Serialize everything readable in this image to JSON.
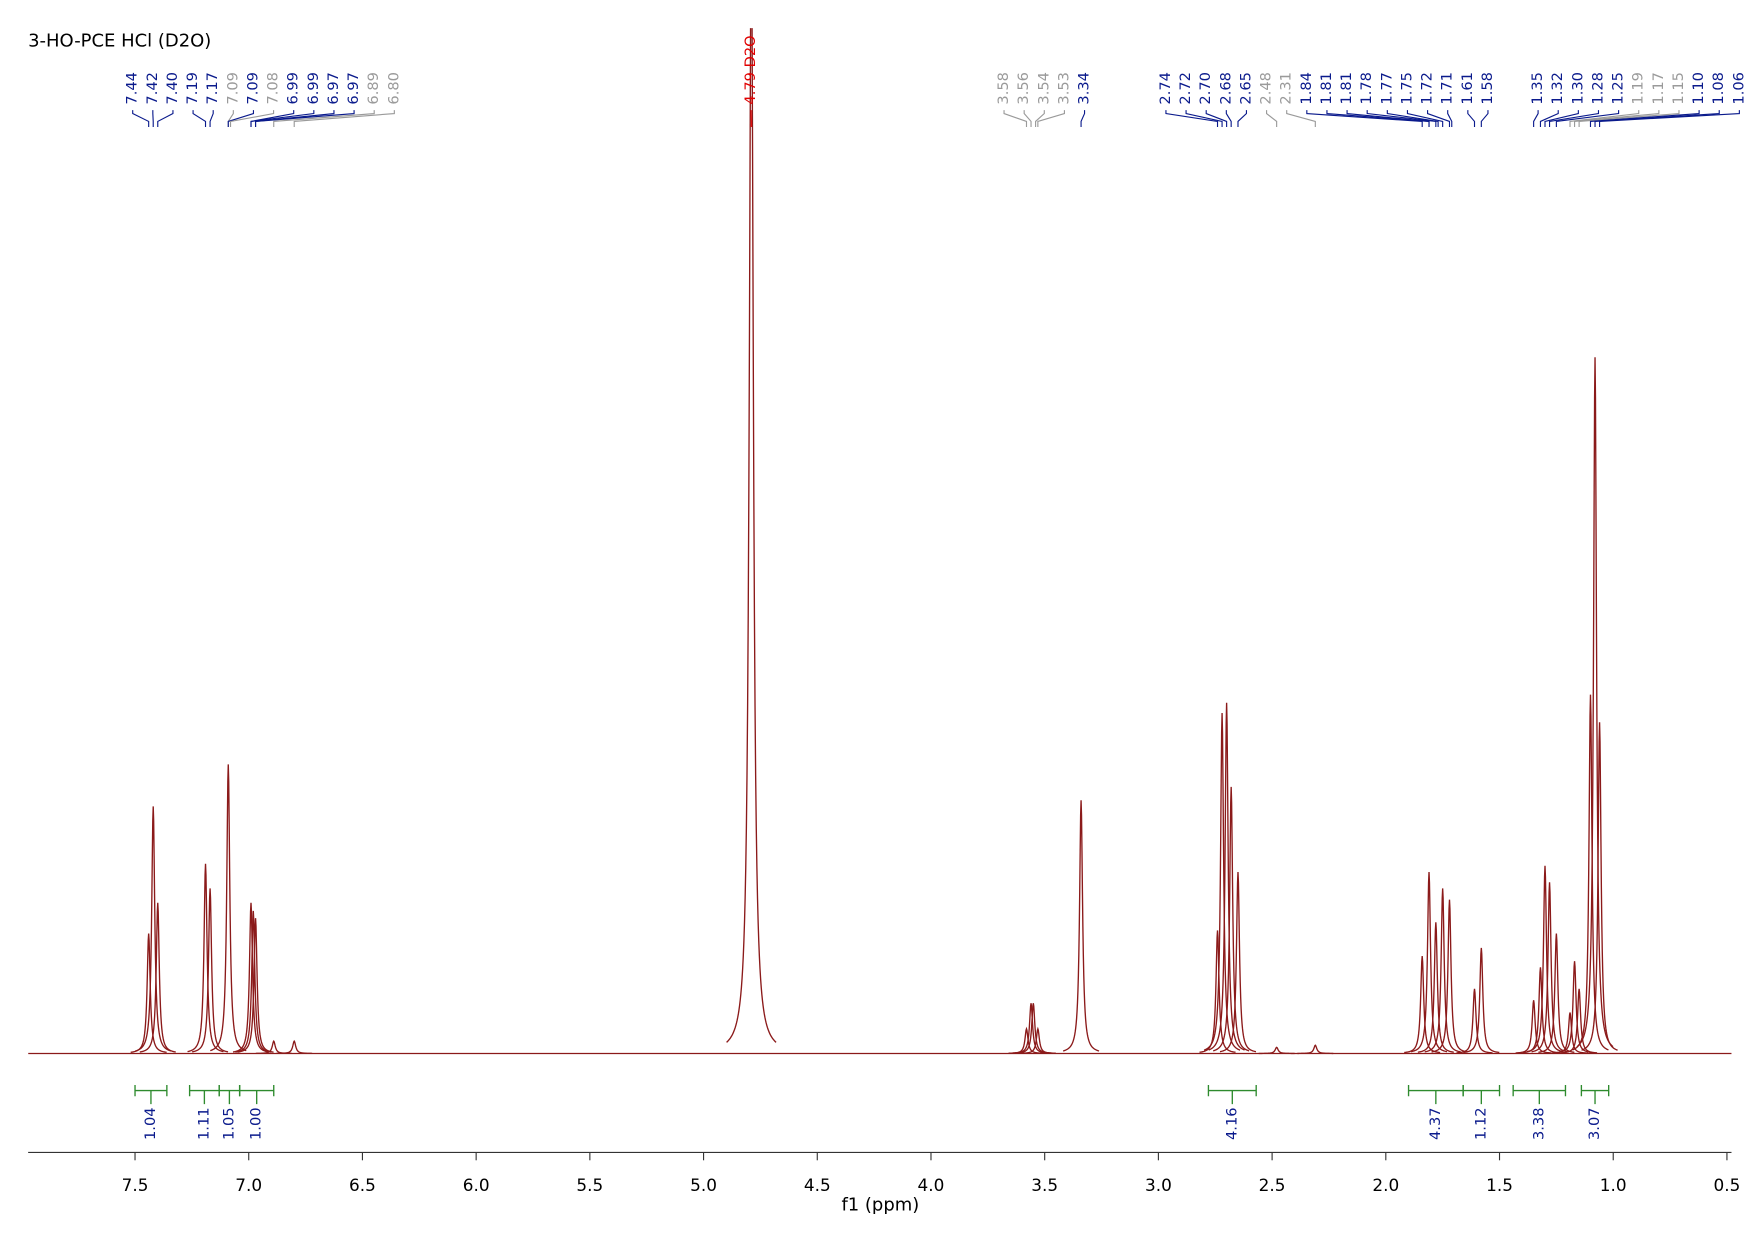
{
  "chart_data": {
    "type": "nmr",
    "title": "3-HO-PCE HCl (D2O)",
    "xlabel": "f1 (ppm)",
    "xlim": [
      7.97,
      0.48
    ],
    "xticks": [
      {
        "value": 7.5,
        "label": "7.5"
      },
      {
        "value": 7,
        "label": "7.0"
      },
      {
        "value": 6.5,
        "label": "6.5"
      },
      {
        "value": 6,
        "label": "6.0"
      },
      {
        "value": 5.5,
        "label": "5.5"
      },
      {
        "value": 5,
        "label": "5.0"
      },
      {
        "value": 4.5,
        "label": "4.5"
      },
      {
        "value": 4,
        "label": "4.0"
      },
      {
        "value": 3.5,
        "label": "3.5"
      },
      {
        "value": 3,
        "label": "3.0"
      },
      {
        "value": 2.5,
        "label": "2.5"
      },
      {
        "value": 2,
        "label": "2.0"
      },
      {
        "value": 1.5,
        "label": "1.5"
      },
      {
        "value": 1,
        "label": "1.0"
      },
      {
        "value": 0.5,
        "label": "0.5"
      }
    ],
    "color": "#8b1a1a",
    "x": [
      7.44,
      7.42,
      7.4,
      7.19,
      7.17,
      7.09,
      6.99,
      6.98,
      6.97,
      6.89,
      6.8,
      4.79,
      3.58,
      3.56,
      3.55,
      3.53,
      3.34,
      2.74,
      2.72,
      2.7,
      2.68,
      2.65,
      2.48,
      2.31,
      1.84,
      1.81,
      1.78,
      1.75,
      1.72,
      1.61,
      1.58,
      1.35,
      1.32,
      1.3,
      1.28,
      1.25,
      1.19,
      1.17,
      1.15,
      1.1,
      1.08,
      1.06
    ],
    "values": [
      11.7,
      24.1,
      14.7,
      18.5,
      16.1,
      28.2,
      14.7,
      13.9,
      13.2,
      1.2,
      1.2,
      110,
      2.4,
      4.9,
      4.9,
      2.4,
      24.7,
      12,
      33.2,
      34.2,
      26,
      17.7,
      0.6,
      0.8,
      9.5,
      17.7,
      12.8,
      16.1,
      15,
      6.3,
      10.3,
      5.2,
      8.4,
      18.3,
      16.7,
      11.7,
      4,
      9,
      6.3,
      35,
      67.9,
      32.3
    ],
    "peak_labels": [
      {
        "labels": [
          "7.44",
          "7.42",
          "7.40",
          "7.19",
          "7.17",
          "7.09",
          "7.09",
          "7.08",
          "6.99",
          "6.99",
          "6.97",
          "6.97",
          "6.89",
          "6.80"
        ],
        "colors": [
          "#0a1a8c",
          "#0a1a8c",
          "#0a1a8c",
          "#0a1a8c",
          "#0a1a8c",
          "#9a9a9a",
          "#0a1a8c",
          "#9a9a9a",
          "#0a1a8c",
          "#0a1a8c",
          "#0a1a8c",
          "#0a1a8c",
          "#9a9a9a",
          "#9a9a9a"
        ]
      },
      {
        "labels": [
          "4.79 D2O"
        ],
        "colors": [
          "#e00000"
        ]
      },
      {
        "labels": [
          "3.58",
          "3.56",
          "3.54",
          "3.53",
          "3.34"
        ],
        "colors": [
          "#9a9a9a",
          "#9a9a9a",
          "#9a9a9a",
          "#9a9a9a",
          "#0a1a8c"
        ]
      },
      {
        "labels": [
          "2.74",
          "2.72",
          "2.70",
          "2.68",
          "2.65",
          "2.48",
          "2.31",
          "1.84",
          "1.81",
          "1.81",
          "1.78",
          "1.77",
          "1.75",
          "1.72",
          "1.71",
          "1.61",
          "1.58"
        ],
        "colors": [
          "#0a1a8c",
          "#0a1a8c",
          "#0a1a8c",
          "#0a1a8c",
          "#0a1a8c",
          "#9a9a9a",
          "#9a9a9a",
          "#0a1a8c",
          "#0a1a8c",
          "#0a1a8c",
          "#0a1a8c",
          "#0a1a8c",
          "#0a1a8c",
          "#0a1a8c",
          "#0a1a8c",
          "#0a1a8c",
          "#0a1a8c"
        ]
      },
      {
        "labels": [
          "1.35",
          "1.32",
          "1.30",
          "1.28",
          "1.25",
          "1.19",
          "1.17",
          "1.15",
          "1.10",
          "1.08",
          "1.06"
        ],
        "colors": [
          "#0a1a8c",
          "#0a1a8c",
          "#0a1a8c",
          "#0a1a8c",
          "#0a1a8c",
          "#9a9a9a",
          "#9a9a9a",
          "#9a9a9a",
          "#0a1a8c",
          "#0a1a8c",
          "#0a1a8c"
        ]
      }
    ],
    "integrals": {
      "color": "#2e8b2e",
      "label_color": "#0a1a8c",
      "ranges": [
        [
          7.5,
          7.36
        ],
        [
          7.26,
          7.13
        ],
        [
          7.13,
          7.04
        ],
        [
          7.04,
          6.89
        ],
        [
          2.78,
          2.57
        ],
        [
          1.9,
          1.66
        ],
        [
          1.66,
          1.5
        ],
        [
          1.44,
          1.21
        ],
        [
          1.14,
          1.02
        ]
      ],
      "values": [
        1.04,
        1.11,
        1.05,
        1,
        4.16,
        4.37,
        1.12,
        3.38,
        3.07
      ],
      "value_labels": [
        "1.04",
        "1.11",
        "1.05",
        "1.00",
        "4.16",
        "4.37",
        "1.12",
        "3.38",
        "3.07"
      ]
    }
  }
}
